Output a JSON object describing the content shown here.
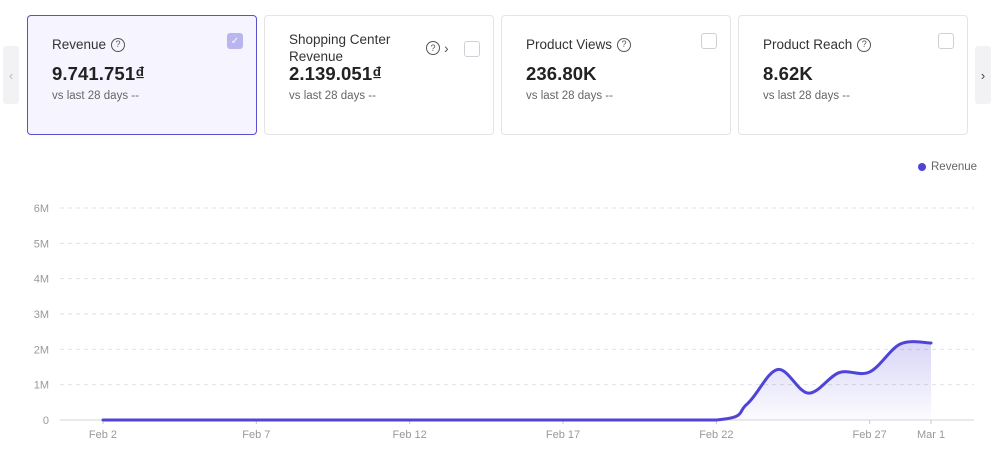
{
  "nav": {
    "prev_icon": "‹",
    "next_icon": "›"
  },
  "cards": [
    {
      "title": "Revenue",
      "value": "9.741.751₫",
      "compare": "vs last 28 days --",
      "checked": true,
      "check_glyph": "✓"
    },
    {
      "title": "Shopping Center Revenue",
      "value": "2.139.051₫",
      "compare": "vs last 28 days --",
      "checked": false,
      "chevron": "›"
    },
    {
      "title": "Product Views",
      "value": "236.80K",
      "compare": "vs last 28 days --",
      "checked": false
    },
    {
      "title": "Product Reach",
      "value": "8.62K",
      "compare": "vs last 28 days --",
      "checked": false
    }
  ],
  "help_glyph": "?",
  "accent_color": "#5a4fcf",
  "chart_data": {
    "type": "area",
    "series": [
      {
        "name": "Revenue",
        "color": "#4f44d6",
        "points": [
          [
            "Feb 2",
            0
          ],
          [
            "Feb 7",
            0
          ],
          [
            "Feb 12",
            0
          ],
          [
            "Feb 17",
            0
          ],
          [
            "Feb 22",
            0
          ],
          [
            "Feb 23",
            450000
          ],
          [
            "Feb 24",
            1430000
          ],
          [
            "Feb 25",
            760000
          ],
          [
            "Feb 26",
            1340000
          ],
          [
            "Feb 27",
            1360000
          ],
          [
            "Feb 28",
            2150000
          ],
          [
            "Mar 1",
            2180000
          ]
        ]
      }
    ],
    "x_ticks": [
      "Feb 2",
      "Feb 7",
      "Feb 12",
      "Feb 17",
      "Feb 22",
      "Feb 27",
      "Mar 1"
    ],
    "y_ticks": [
      "0",
      "1M",
      "2M",
      "3M",
      "4M",
      "5M",
      "6M"
    ],
    "ylim": [
      0,
      6000000
    ],
    "legend": "Revenue",
    "legend_position": "top-right"
  }
}
